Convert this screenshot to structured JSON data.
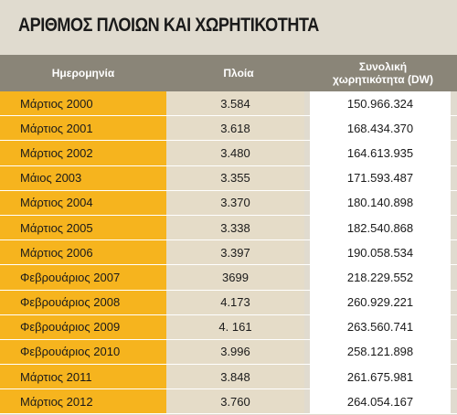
{
  "title": "ΑΡΙΘΜΟΣ ΠΛΟΙΩΝ ΚΑΙ ΧΩΡΗΤΙΚΟΤΗΤΑ",
  "columns": {
    "date": "Ημερομηνία",
    "ships": "Πλοία",
    "capacity": "Συνολική\nχωρητικότητα (DW)"
  },
  "rows": [
    {
      "date": "Μάρτιος 2000",
      "ships": "3.584",
      "capacity": "150.966.324"
    },
    {
      "date": "Μάρτιος 2001",
      "ships": "3.618",
      "capacity": "168.434.370"
    },
    {
      "date": "Μάρτιος 2002",
      "ships": "3.480",
      "capacity": "164.613.935"
    },
    {
      "date": "Μάιος 2003",
      "ships": "3.355",
      "capacity": "171.593.487"
    },
    {
      "date": "Μάρτιος 2004",
      "ships": "3.370",
      "capacity": "180.140.898"
    },
    {
      "date": "Μάρτιος 2005",
      "ships": "3.338",
      "capacity": "182.540.868"
    },
    {
      "date": "Μάρτιος 2006",
      "ships": "3.397",
      "capacity": "190.058.534"
    },
    {
      "date": "Φεβρουάριος 2007",
      "ships": "3699",
      "capacity": "218.229.552"
    },
    {
      "date": "Φεβρουάριος 2008",
      "ships": "4.173",
      "capacity": "260.929.221"
    },
    {
      "date": "Φεβρουάριος 2009",
      "ships": "4. 161",
      "capacity": "263.560.741"
    },
    {
      "date": "Φεβρουάριος 2010",
      "ships": "3.996",
      "capacity": "258.121.898"
    },
    {
      "date": "Μάρτιος 2011",
      "ships": "3.848",
      "capacity": "261.675.981"
    },
    {
      "date": "Μάρτιος 2012",
      "ships": "3.760",
      "capacity": "264.054.167"
    }
  ],
  "colors": {
    "background": "#e0dbcf",
    "header": "#8a8578",
    "date_column": "#f6b41e",
    "ships_column": "#e5dcc8",
    "capacity_column": "#ffffff"
  }
}
